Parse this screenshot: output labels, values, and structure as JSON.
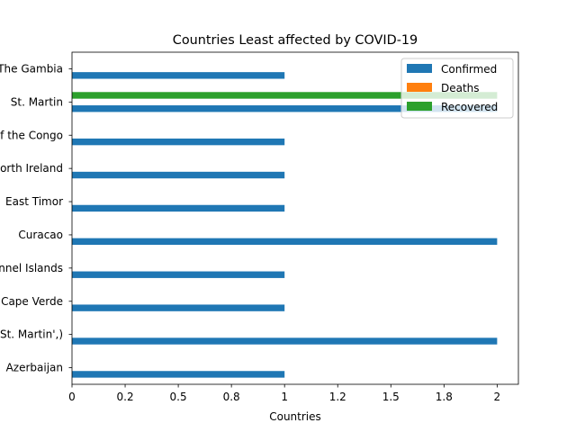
{
  "chart_data": {
    "type": "bar",
    "orientation": "horizontal",
    "title": "Countries Least affected by COVID-19",
    "xlabel": "Countries",
    "ylabel": "",
    "categories": [
      "Azerbaijan",
      "('St. Martin',)",
      "Cape Verde",
      "Channel Islands",
      "Curacao",
      "East Timor",
      "North Ireland",
      "Republic of the Congo",
      "St. Martin",
      "The Gambia"
    ],
    "series": [
      {
        "name": "Confirmed",
        "color": "#1f77b4",
        "values": [
          1,
          2,
          1,
          1,
          2,
          1,
          1,
          1,
          2,
          1
        ]
      },
      {
        "name": "Deaths",
        "color": "#ff7f0e",
        "values": [
          0,
          0,
          0,
          0,
          0,
          0,
          0,
          0,
          0,
          0
        ]
      },
      {
        "name": "Recovered",
        "color": "#2ca02c",
        "values": [
          0,
          0,
          0,
          0,
          0,
          0,
          0,
          0,
          2,
          0
        ]
      }
    ],
    "xlim": [
      0,
      2.1
    ],
    "xticks": [
      "0",
      "0.2",
      "0.5",
      "0.8",
      "1",
      "1.2",
      "1.5",
      "1.8",
      "2"
    ],
    "xtick_values": [
      0,
      0.25,
      0.5,
      0.75,
      1,
      1.25,
      1.5,
      1.75,
      2
    ],
    "grid": false,
    "legend_position": "top-right"
  }
}
